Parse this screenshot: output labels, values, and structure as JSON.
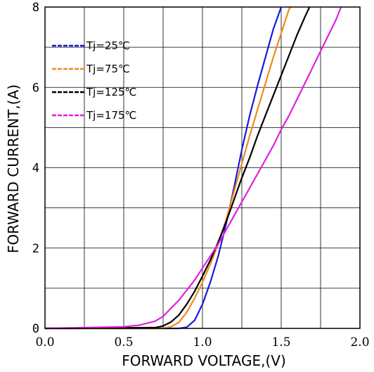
{
  "chart_data": {
    "type": "line",
    "xlabel": "FORWARD VOLTAGE,(V)",
    "ylabel": "FORWARD CURRENT,(A)",
    "xlim": [
      0,
      2.0
    ],
    "ylim": [
      0,
      8
    ],
    "x_ticks": [
      "0.0",
      "0.5",
      "1.0",
      "1.5",
      "2.0"
    ],
    "y_ticks": [
      "0",
      "2",
      "4",
      "6",
      "8"
    ],
    "x_minor_step": 0.25,
    "y_minor_step": 1,
    "grid": true,
    "legend_position": "top-left",
    "series": [
      {
        "name": "Tj=25℃",
        "color": "#1a1ad6",
        "points": [
          [
            0,
            0
          ],
          [
            0.85,
            0
          ],
          [
            0.9,
            0.03
          ],
          [
            0.95,
            0.2
          ],
          [
            1.0,
            0.6
          ],
          [
            1.05,
            1.15
          ],
          [
            1.1,
            1.8
          ],
          [
            1.15,
            2.6
          ],
          [
            1.2,
            3.5
          ],
          [
            1.25,
            4.45
          ],
          [
            1.3,
            5.3
          ],
          [
            1.35,
            6.05
          ],
          [
            1.4,
            6.75
          ],
          [
            1.45,
            7.45
          ],
          [
            1.5,
            8.0
          ]
        ]
      },
      {
        "name": "Tj=75℃",
        "color": "#f08a1a",
        "points": [
          [
            0,
            0
          ],
          [
            0.75,
            0
          ],
          [
            0.8,
            0.04
          ],
          [
            0.85,
            0.15
          ],
          [
            0.9,
            0.4
          ],
          [
            0.95,
            0.75
          ],
          [
            1.0,
            1.15
          ],
          [
            1.05,
            1.6
          ],
          [
            1.1,
            2.1
          ],
          [
            1.15,
            2.7
          ],
          [
            1.2,
            3.4
          ],
          [
            1.25,
            4.1
          ],
          [
            1.3,
            4.8
          ],
          [
            1.35,
            5.45
          ],
          [
            1.4,
            6.1
          ],
          [
            1.45,
            6.75
          ],
          [
            1.5,
            7.35
          ],
          [
            1.55,
            7.95
          ],
          [
            1.56,
            8.0
          ]
        ]
      },
      {
        "name": "Tj=125℃",
        "color": "#000000",
        "points": [
          [
            0,
            0
          ],
          [
            0.7,
            0.02
          ],
          [
            0.75,
            0.06
          ],
          [
            0.8,
            0.16
          ],
          [
            0.85,
            0.33
          ],
          [
            0.9,
            0.6
          ],
          [
            0.95,
            0.92
          ],
          [
            1.0,
            1.3
          ],
          [
            1.05,
            1.7
          ],
          [
            1.1,
            2.15
          ],
          [
            1.15,
            2.65
          ],
          [
            1.2,
            3.2
          ],
          [
            1.25,
            3.75
          ],
          [
            1.3,
            4.25
          ],
          [
            1.35,
            4.8
          ],
          [
            1.4,
            5.3
          ],
          [
            1.45,
            5.8
          ],
          [
            1.5,
            6.3
          ],
          [
            1.55,
            6.8
          ],
          [
            1.6,
            7.3
          ],
          [
            1.65,
            7.75
          ],
          [
            1.68,
            8.0
          ]
        ]
      },
      {
        "name": "Tj=175℃",
        "color": "#e020e0",
        "points": [
          [
            0,
            0
          ],
          [
            0.5,
            0.04
          ],
          [
            0.6,
            0.08
          ],
          [
            0.7,
            0.18
          ],
          [
            0.75,
            0.3
          ],
          [
            0.8,
            0.5
          ],
          [
            0.85,
            0.7
          ],
          [
            0.9,
            0.95
          ],
          [
            0.95,
            1.2
          ],
          [
            1.0,
            1.5
          ],
          [
            1.05,
            1.8
          ],
          [
            1.1,
            2.1
          ],
          [
            1.15,
            2.45
          ],
          [
            1.2,
            2.8
          ],
          [
            1.25,
            3.15
          ],
          [
            1.3,
            3.5
          ],
          [
            1.35,
            3.85
          ],
          [
            1.4,
            4.2
          ],
          [
            1.45,
            4.55
          ],
          [
            1.5,
            4.95
          ],
          [
            1.55,
            5.3
          ],
          [
            1.6,
            5.7
          ],
          [
            1.65,
            6.1
          ],
          [
            1.7,
            6.5
          ],
          [
            1.75,
            6.9
          ],
          [
            1.8,
            7.3
          ],
          [
            1.85,
            7.7
          ],
          [
            1.88,
            8.0
          ]
        ]
      }
    ]
  }
}
